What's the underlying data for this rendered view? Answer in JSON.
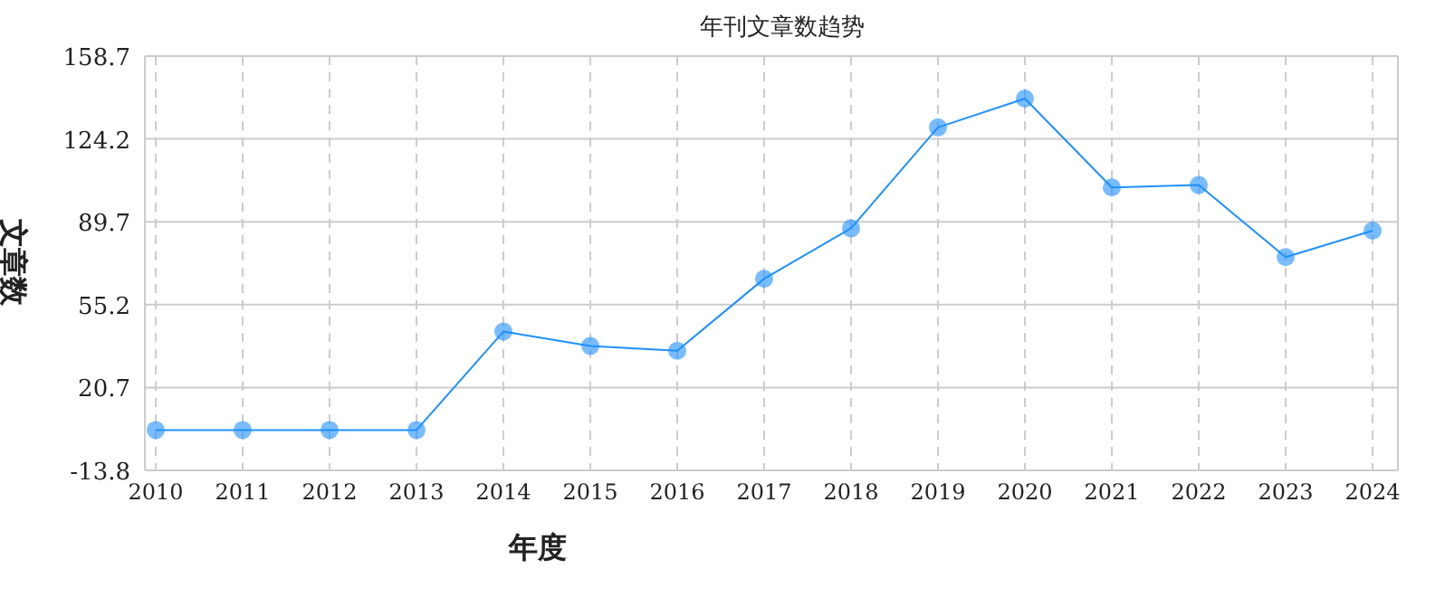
{
  "chart_data": {
    "type": "line",
    "title": "年刊文章数趋势",
    "xlabel": "年度",
    "ylabel": "文章数",
    "categories": [
      "2010",
      "2011",
      "2012",
      "2013",
      "2014",
      "2015",
      "2016",
      "2017",
      "2018",
      "2019",
      "2020",
      "2021",
      "2022",
      "2023",
      "2024"
    ],
    "series": [
      {
        "color": "#1e90ff",
        "values": [
          3,
          3,
          3,
          3,
          44,
          38,
          36,
          66,
          87,
          129,
          141,
          104,
          105,
          75,
          86
        ]
      }
    ],
    "ylim": [
      -13.8,
      158.7
    ],
    "yticks": [
      -13.8,
      20.7,
      55.2,
      89.7,
      124.2,
      158.7
    ],
    "grid": true,
    "marker": "circle",
    "line_style": "solid"
  }
}
